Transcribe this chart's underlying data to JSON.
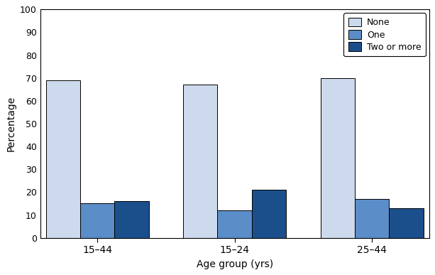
{
  "groups": [
    "15–44",
    "15–24",
    "25–44"
  ],
  "series": {
    "None": [
      69,
      67,
      70
    ],
    "One": [
      15,
      12,
      17
    ],
    "Two or more": [
      16,
      21,
      13
    ]
  },
  "colors": {
    "None": "#cdd9ed",
    "One": "#5b8dc8",
    "Two or more": "#1b4f8c"
  },
  "legend_labels": [
    "None",
    "One",
    "Two or more"
  ],
  "xlabel": "Age group (yrs)",
  "ylabel": "Percentage",
  "ylim": [
    0,
    100
  ],
  "yticks": [
    0,
    10,
    20,
    30,
    40,
    50,
    60,
    70,
    80,
    90,
    100
  ],
  "bar_width": 0.3,
  "group_positions": [
    0.4,
    1.6,
    2.8
  ],
  "xlim": [
    -0.1,
    3.3
  ],
  "figure_bg": "#ffffff",
  "axes_bg": "#ffffff"
}
